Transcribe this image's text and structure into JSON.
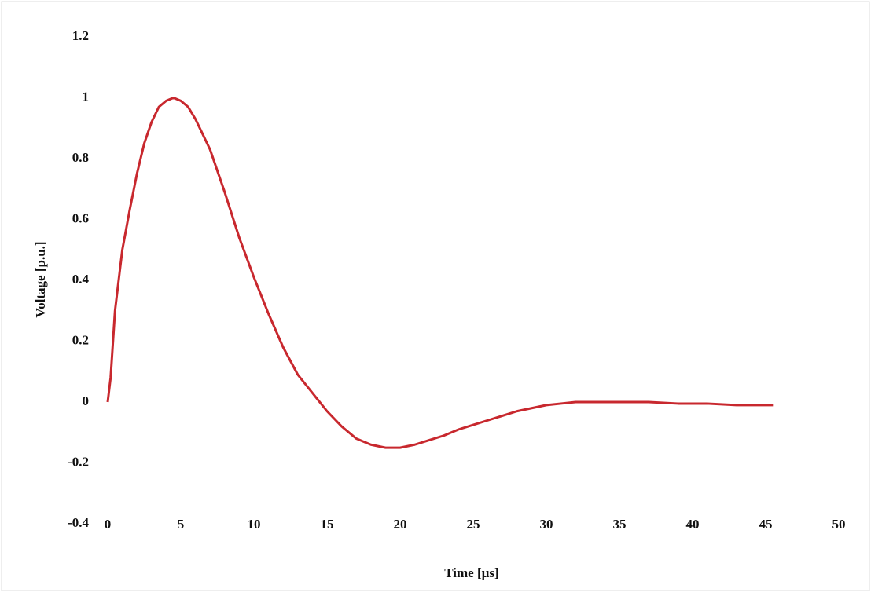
{
  "chart_data": {
    "type": "line",
    "x_label": "Time [µs]",
    "y_label": "Voltage [p.u.]",
    "x": [
      0,
      0.2,
      0.5,
      1,
      1.5,
      2,
      2.5,
      3,
      3.5,
      4,
      4.5,
      5,
      5.5,
      6,
      7,
      8,
      9,
      10,
      11,
      12,
      13,
      14,
      15,
      16,
      17,
      18,
      19,
      20,
      21,
      22,
      23,
      24,
      25,
      26,
      27,
      28,
      29,
      30,
      31,
      32,
      33,
      35,
      37,
      39,
      41,
      43,
      45.5
    ],
    "series": [
      {
        "name": "Voltage",
        "color": "#c8282e",
        "values": [
          0,
          0.08,
          0.3,
          0.5,
          0.63,
          0.75,
          0.85,
          0.92,
          0.97,
          0.99,
          1.0,
          0.99,
          0.97,
          0.93,
          0.83,
          0.69,
          0.54,
          0.41,
          0.29,
          0.18,
          0.09,
          0.03,
          -0.03,
          -0.08,
          -0.12,
          -0.14,
          -0.15,
          -0.15,
          -0.14,
          -0.125,
          -0.11,
          -0.09,
          -0.075,
          -0.06,
          -0.045,
          -0.03,
          -0.02,
          -0.01,
          -0.005,
          0,
          0,
          0,
          0,
          -0.005,
          -0.005,
          -0.01,
          -0.01
        ]
      }
    ],
    "xlim": [
      0,
      50
    ],
    "xticks": [
      0,
      5,
      10,
      15,
      20,
      25,
      30,
      35,
      40,
      45,
      50
    ],
    "ylim": [
      -0.4,
      1.2
    ],
    "yticks": [
      -0.4,
      -0.2,
      0,
      0.2,
      0.4,
      0.6,
      0.8,
      1,
      1.2
    ],
    "grid": false
  }
}
